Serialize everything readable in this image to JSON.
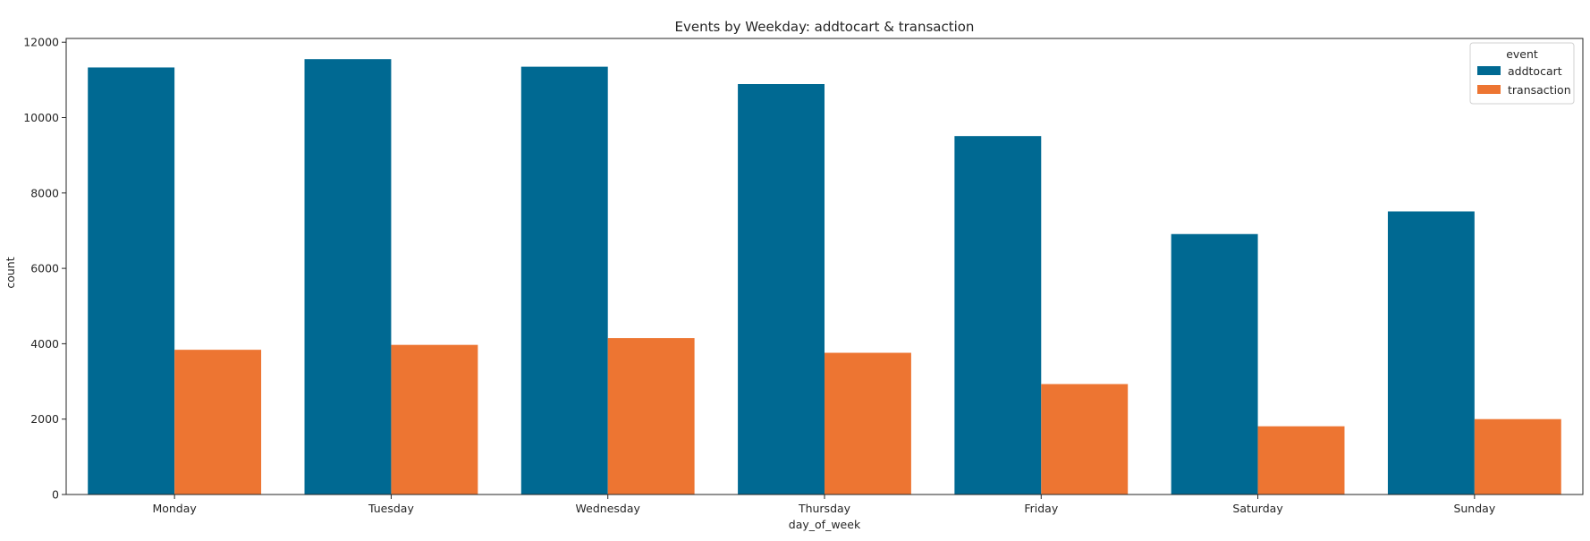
{
  "chart_data": {
    "type": "bar",
    "title": "Events by Weekday: addtocart & transaction",
    "xlabel": "day_of_week",
    "ylabel": "count",
    "categories": [
      "Monday",
      "Tuesday",
      "Wednesday",
      "Thursday",
      "Friday",
      "Saturday",
      "Sunday"
    ],
    "series": [
      {
        "name": "addtocart",
        "color": "#006992",
        "values": [
          11330,
          11550,
          11350,
          10890,
          9510,
          6910,
          7510
        ]
      },
      {
        "name": "transaction",
        "color": "#ed7532",
        "values": [
          3840,
          3970,
          4150,
          3760,
          2930,
          1810,
          2000
        ]
      }
    ],
    "ylim": [
      0,
      12100
    ],
    "yticks": [
      0,
      2000,
      4000,
      6000,
      8000,
      10000,
      12000
    ],
    "legend": {
      "title": "event",
      "placement": "top-right"
    },
    "grid": false
  }
}
